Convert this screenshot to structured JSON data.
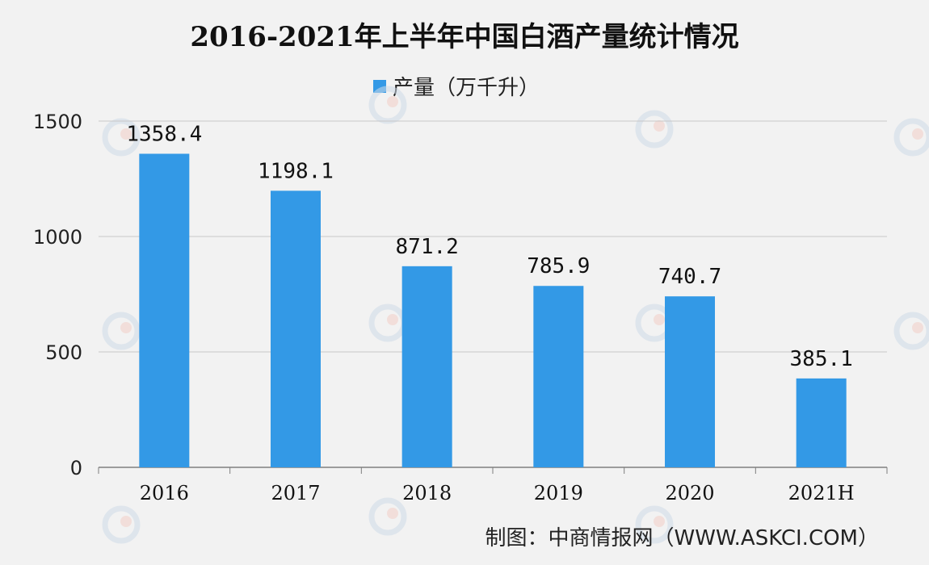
{
  "title": "2016-2021年上半年中国白酒产量统计情况",
  "source": "制图：中商情报网（WWW.ASKCI.COM）",
  "colors": {
    "bar": "#3399e6",
    "grid": "#c8c8c8",
    "axis": "#7f7f7f"
  },
  "chart_data": {
    "type": "bar",
    "categories": [
      "2016",
      "2017",
      "2018",
      "2019",
      "2020",
      "2021H"
    ],
    "series": [
      {
        "name": "产量（万千升）",
        "values": [
          1358.4,
          1198.1,
          871.2,
          785.9,
          740.7,
          385.1
        ]
      }
    ],
    "value_labels": [
      "1358.4",
      "1198.1",
      "871.2",
      "785.9",
      "740.7",
      "385.1"
    ],
    "ylim": [
      0,
      1500
    ],
    "yticks": [
      0,
      500,
      1000,
      1500
    ],
    "grid": true,
    "legend": "top-center",
    "xlabel": "",
    "ylabel": ""
  }
}
